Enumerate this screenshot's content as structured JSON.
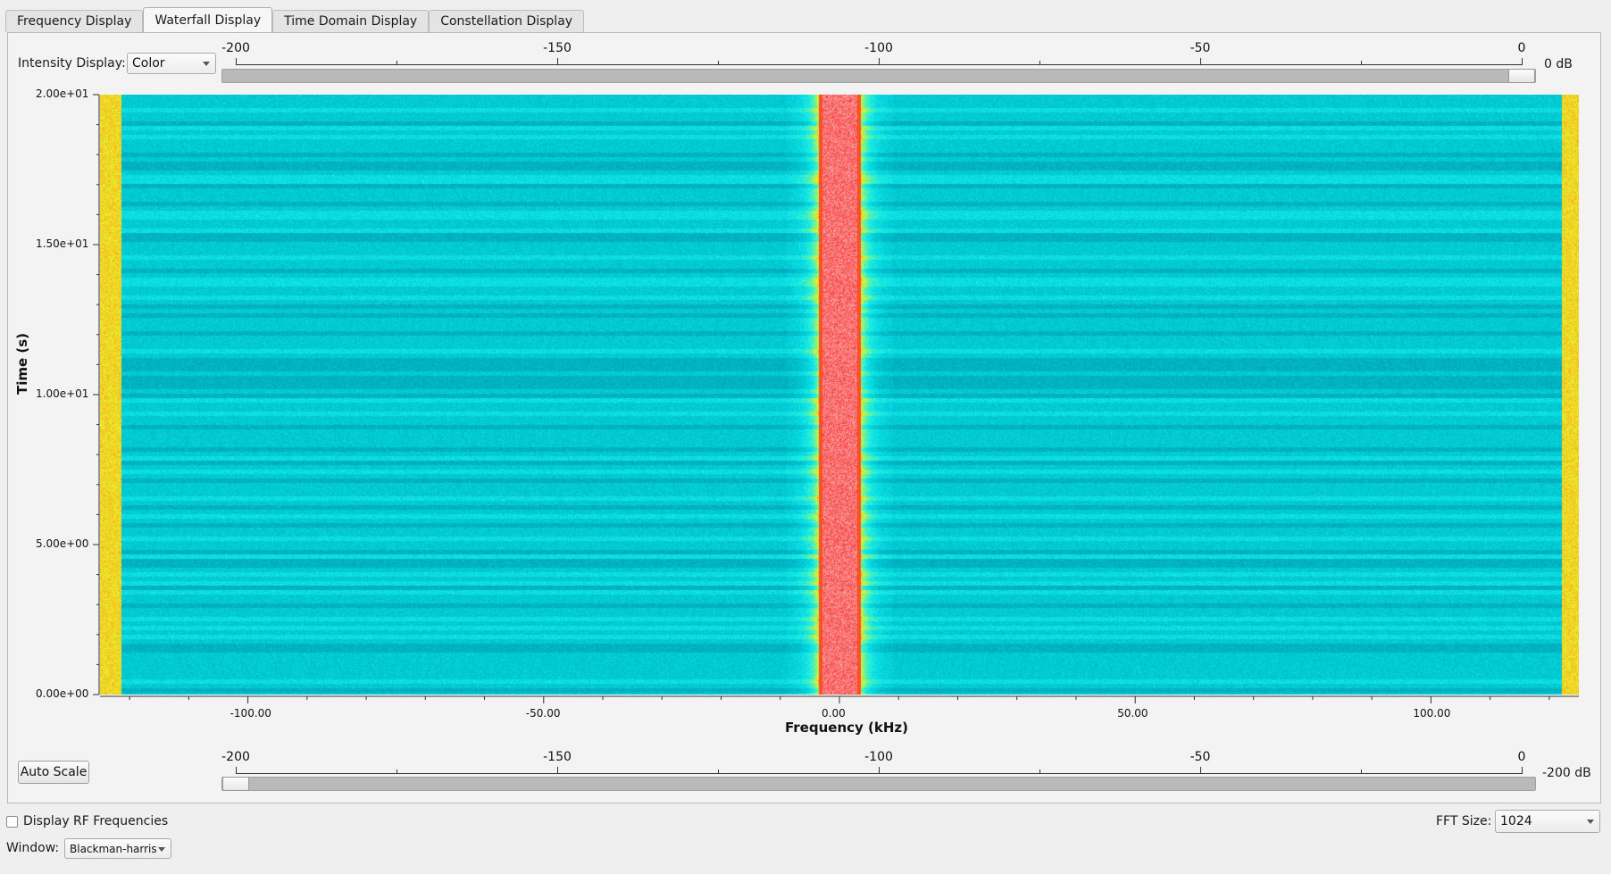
{
  "tabs": [
    {
      "label": "Frequency Display",
      "active": false
    },
    {
      "label": "Waterfall Display",
      "active": true
    },
    {
      "label": "Time Domain Display",
      "active": false
    },
    {
      "label": "Constellation Display",
      "active": false
    }
  ],
  "intensity": {
    "label": "Intensity Display:",
    "value": "Color"
  },
  "max_slider": {
    "ticks": [
      "-200",
      "-150",
      "-100",
      "-50",
      "0"
    ],
    "value_label": "0 dB",
    "value": 0,
    "range": [
      -200,
      0
    ]
  },
  "min_slider": {
    "ticks": [
      "-200",
      "-150",
      "-100",
      "-50",
      "0"
    ],
    "value_label": "-200 dB",
    "value": -200,
    "range": [
      -200,
      0
    ]
  },
  "auto_scale": {
    "label": "Auto Scale"
  },
  "plot": {
    "y_axis_title": "Time (s)",
    "y_ticks": [
      "2.00e+01",
      "1.50e+01",
      "1.00e+01",
      "5.00e+00",
      "0.00e+00"
    ],
    "x_axis_title": "Frequency (kHz)",
    "x_ticks": [
      "-100.00",
      "-50.00",
      "0.00",
      "50.00",
      "100.00"
    ]
  },
  "rf_checkbox": {
    "label": "Display RF Frequencies",
    "checked": false
  },
  "fft": {
    "label": "FFT Size:",
    "value": "1024"
  },
  "window": {
    "label": "Window:",
    "value": "Blackman-harris"
  },
  "colors": {
    "low": "#00e5ff",
    "mid": "#ffe600",
    "high": "#ff2020"
  }
}
